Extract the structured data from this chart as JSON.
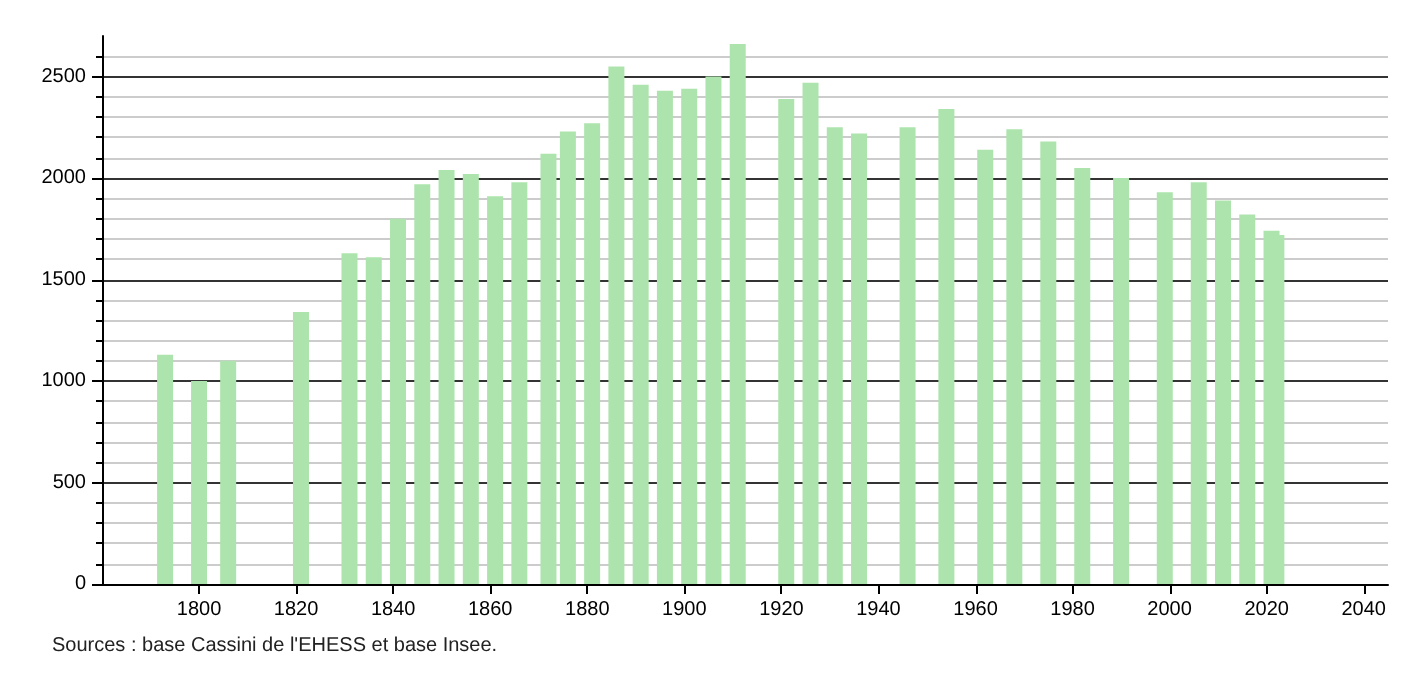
{
  "chart_data": {
    "type": "bar",
    "x": [
      1793,
      1800,
      1806,
      1821,
      1831,
      1836,
      1841,
      1846,
      1851,
      1856,
      1861,
      1866,
      1872,
      1876,
      1881,
      1886,
      1891,
      1896,
      1901,
      1906,
      1911,
      1921,
      1926,
      1931,
      1936,
      1946,
      1954,
      1962,
      1968,
      1975,
      1982,
      1990,
      1999,
      2006,
      2011,
      2016,
      2021,
      2022
    ],
    "values": [
      1130,
      1000,
      1100,
      1340,
      1630,
      1610,
      1800,
      1970,
      2040,
      2020,
      1910,
      1980,
      2120,
      2230,
      2270,
      2550,
      2460,
      2430,
      2440,
      2500,
      2660,
      2390,
      2470,
      2250,
      2220,
      2250,
      2340,
      2140,
      2240,
      2180,
      2050,
      2000,
      1930,
      1980,
      1890,
      1820,
      1740,
      1720
    ],
    "color": "#ade4ad",
    "xlim": [
      1780,
      2045
    ],
    "xticks": [
      1800,
      1820,
      1840,
      1860,
      1880,
      1900,
      1920,
      1940,
      1960,
      1980,
      2000,
      2020,
      2040
    ],
    "ylim": [
      0,
      2700
    ],
    "yticks": [
      0,
      500,
      1000,
      1500,
      2000,
      2500
    ],
    "grid": "y",
    "annotations": [
      "Sources : base Cassini de l'EHESS et base Insee."
    ]
  }
}
